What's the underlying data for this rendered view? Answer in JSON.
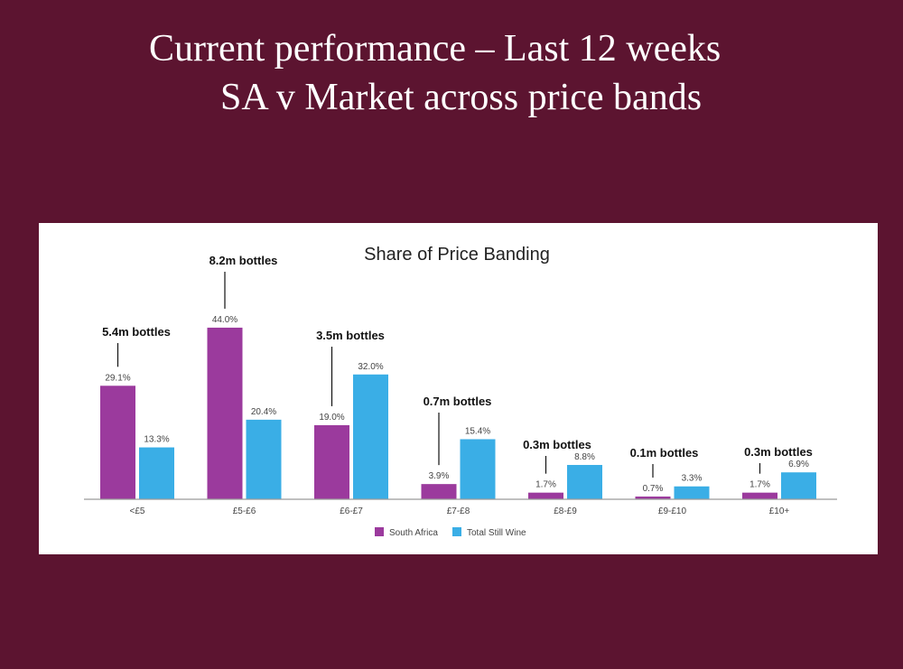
{
  "slide": {
    "title_line1": "Current performance – Last 12 weeks",
    "title_line2": "SA v Market across price bands"
  },
  "colors": {
    "background": "#5c1430",
    "south_africa": "#9b3a9d",
    "total_still_wine": "#3aaee6"
  },
  "chart_data": {
    "type": "bar",
    "title": "Share of Price Banding",
    "categories": [
      "<£5",
      "£5-£6",
      "£6-£7",
      "£7-£8",
      "£8-£9",
      "£9-£10",
      "£10+"
    ],
    "series": [
      {
        "name": "South Africa",
        "values": [
          29.1,
          44.0,
          19.0,
          3.9,
          1.7,
          0.7,
          1.7
        ],
        "labels": [
          "29.1%",
          "44.0%",
          "19.0%",
          "3.9%",
          "1.7%",
          "0.7%",
          "1.7%"
        ]
      },
      {
        "name": "Total Still Wine",
        "values": [
          13.3,
          20.4,
          32.0,
          15.4,
          8.8,
          3.3,
          6.9
        ],
        "labels": [
          "13.3%",
          "20.4%",
          "32.0%",
          "15.4%",
          "8.8%",
          "3.3%",
          "6.9%"
        ]
      }
    ],
    "annotations": [
      "5.4m bottles",
      "8.2m bottles",
      "3.5m bottles",
      "0.7m bottles",
      "0.3m bottles",
      "0.1m bottles",
      "0.3m bottles"
    ],
    "ylim": [
      0,
      50
    ],
    "grid": false,
    "legend": "bottom"
  }
}
